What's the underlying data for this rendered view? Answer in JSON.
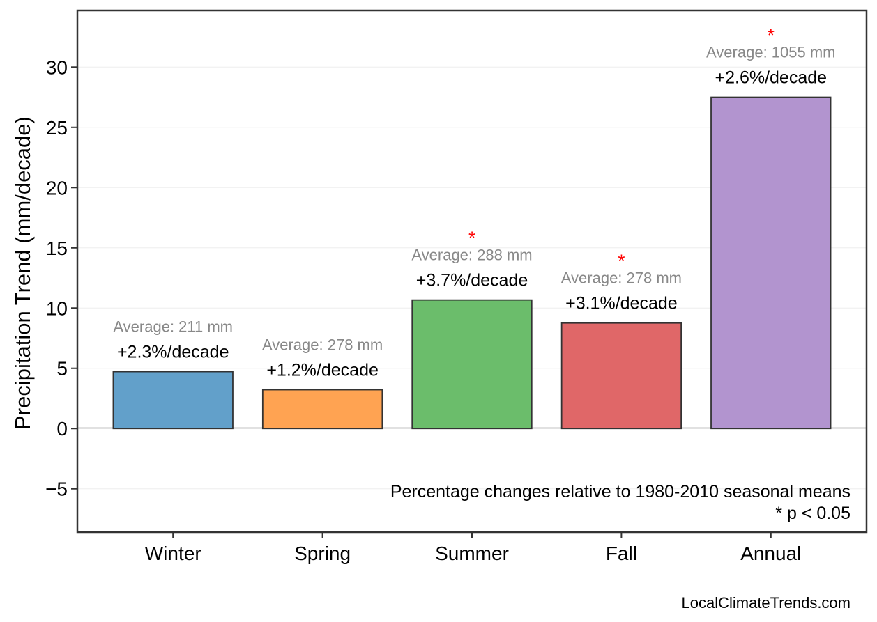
{
  "chart_data": {
    "type": "bar",
    "categories": [
      "Winter",
      "Spring",
      "Summer",
      "Fall",
      "Annual"
    ],
    "values": [
      4.72,
      3.22,
      10.67,
      8.76,
      27.5
    ],
    "colors": [
      "#62a0ca",
      "#ffa352",
      "#6bbd6b",
      "#e06768",
      "#b294cf"
    ],
    "pct_labels": [
      "+2.3%/decade",
      "+1.2%/decade",
      "+3.7%/decade",
      "+3.1%/decade",
      "+2.6%/decade"
    ],
    "avg_labels": [
      "Average: 211 mm",
      "Average: 278 mm",
      "Average: 288 mm",
      "Average: 278 mm",
      "Average: 1055 mm"
    ],
    "significant": [
      false,
      false,
      true,
      true,
      true
    ],
    "significance_marker": "*",
    "xlabel": "",
    "ylabel": "Precipitation Trend (mm/decade)",
    "ylim": [
      -8.6,
      34.7
    ],
    "yticks": [
      -5,
      0,
      5,
      10,
      15,
      20,
      25,
      30
    ],
    "ytick_labels": [
      "−5",
      "0",
      "5",
      "10",
      "15",
      "20",
      "25",
      "30"
    ],
    "grid": true,
    "annotation_lines": [
      "Percentage changes relative to 1980-2010 seasonal means",
      "* p < 0.05"
    ],
    "credit": "LocalClimateTrends.com"
  }
}
